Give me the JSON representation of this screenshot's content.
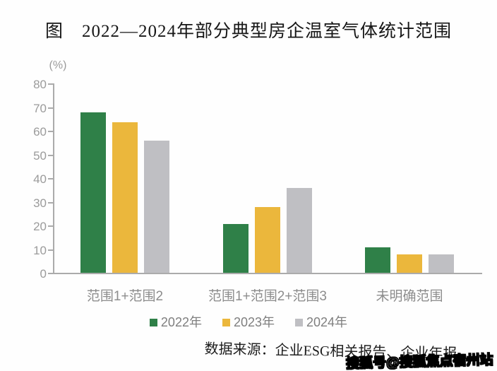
{
  "title": "图　2022—2024年部分典型房企温室气体统计范围",
  "source_note": "数据来源：企业ESG相关报告、企业年报。",
  "watermark": "搜狐号@搜狐焦点宿州站",
  "chart_data": {
    "type": "bar",
    "title": "图 2022—2024年部分典型房企温室气体统计范围",
    "unit_label": "(%)",
    "xlabel": "",
    "ylabel": "(%)",
    "ylim": [
      0,
      80
    ],
    "y_tick_step": 10,
    "y_ticks": [
      0,
      10,
      20,
      30,
      40,
      50,
      60,
      70,
      80
    ],
    "grid": false,
    "legend_position": "bottom",
    "categories": [
      "范围1+范围2",
      "范围1+范围2+范围3",
      "未明确范围"
    ],
    "series": [
      {
        "name": "2022年",
        "color": "#2f8048",
        "values": [
          68,
          21,
          11
        ]
      },
      {
        "name": "2023年",
        "color": "#ebb73c",
        "values": [
          64,
          28,
          8
        ]
      },
      {
        "name": "2024年",
        "color": "#bfbfc3",
        "values": [
          56,
          36,
          8
        ]
      }
    ]
  },
  "colors": {
    "axis": "#ababab",
    "tick_label": "#9b9b9b",
    "category_label": "#8d8d8d",
    "legend_label": "#7f7f7f",
    "series_2022": "#2f8048",
    "series_2023": "#ebb73c",
    "series_2024": "#bfbfc3"
  }
}
